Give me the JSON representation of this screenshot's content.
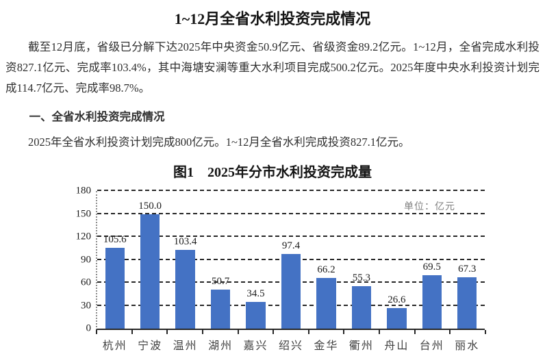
{
  "page": {
    "title": "1~12月全省水利投资完成情况",
    "paragraph1": "截至12月底，省级已分解下达2025年中央资金50.9亿元、省级资金89.2亿元。1~12月，全省完成水利投资827.1亿元、完成率103.4%，其中海塘安澜等重大水利项目完成500.2亿元。2025年度中央水利投资计划完成114.7亿元、完成率98.7%。",
    "section1_heading": "一、全省水利投资完成情况",
    "paragraph2": "2025年全省水利投资计划完成800亿元。1~12月全省水利完成投资827.1亿元。",
    "figure_caption": "图1　2025年分市水利投资完成量"
  },
  "chart_data": {
    "type": "bar",
    "title": "图1　2025年分市水利投资完成量",
    "unit_label": "单位：亿元",
    "categories": [
      "杭州",
      "宁波",
      "温州",
      "湖州",
      "嘉兴",
      "绍兴",
      "金华",
      "衢州",
      "舟山",
      "台州",
      "丽水"
    ],
    "values": [
      105.6,
      150.0,
      103.4,
      50.7,
      34.5,
      97.4,
      66.2,
      55.3,
      26.6,
      69.5,
      67.3
    ],
    "value_label_decimals": 1,
    "y_ticks": [
      0,
      30,
      60,
      90,
      120,
      150,
      180
    ],
    "ylim": [
      0,
      180
    ],
    "xlabel": "",
    "ylabel": "",
    "grid": true,
    "grid_style": "dashed",
    "legend": false,
    "bar_color": "#4472C4",
    "data_labels": true
  }
}
